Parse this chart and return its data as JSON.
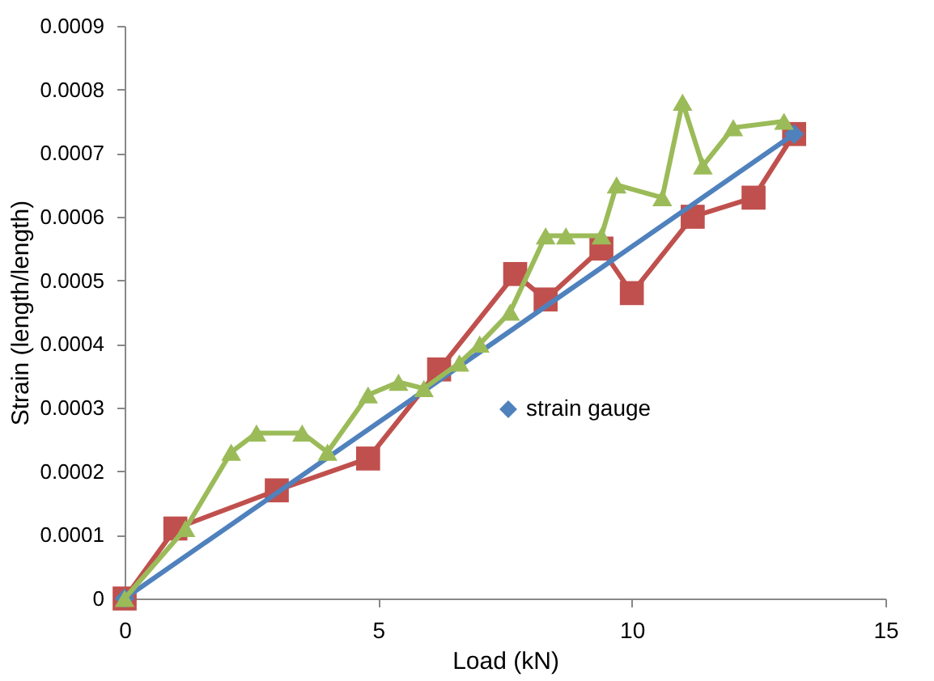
{
  "chart_data": {
    "type": "line",
    "xlabel": "Load (kN)",
    "ylabel": "Strain (length/length)",
    "xlim": [
      0,
      15
    ],
    "xticks": [
      0,
      5,
      10,
      15
    ],
    "ylim": [
      0,
      0.0009
    ],
    "yticks": [
      0,
      0.0001,
      0.0002,
      0.0003,
      0.0004,
      0.0005,
      0.0006,
      0.0007,
      0.0008,
      0.0009
    ],
    "grid": false,
    "legend": "right",
    "series": [
      {
        "color": "#c0504d",
        "marker": "square",
        "x": [
          0,
          1.0,
          3.0,
          4.8,
          6.2,
          7.7,
          8.3,
          9.4,
          10.0,
          11.2,
          12.4,
          13.2
        ],
        "values": [
          0,
          0.00011,
          0.00017,
          0.00022,
          0.00036,
          0.00051,
          0.00047,
          0.00055,
          0.00048,
          0.0006,
          0.00063,
          0.00073
        ]
      },
      {
        "name": "strain gauge",
        "color": "#4f81bd",
        "marker": "diamond",
        "x": [
          0,
          13.2
        ],
        "values": [
          0,
          0.00073
        ]
      },
      {
        "color": "#9bbb59",
        "marker": "triangle",
        "x": [
          0,
          1.2,
          2.1,
          2.6,
          3.5,
          4.0,
          4.8,
          5.4,
          5.9,
          6.6,
          7.0,
          7.6,
          8.3,
          8.7,
          9.4,
          9.7,
          10.6,
          11.0,
          11.4,
          12.0,
          13.0
        ],
        "values": [
          0,
          0.00011,
          0.00023,
          0.00026,
          0.00026,
          0.00023,
          0.00032,
          0.00034,
          0.00033,
          0.00037,
          0.0004,
          0.00045,
          0.00057,
          0.00057,
          0.00057,
          0.00065,
          0.00063,
          0.00078,
          0.00068,
          0.00074,
          0.00075
        ]
      }
    ]
  }
}
